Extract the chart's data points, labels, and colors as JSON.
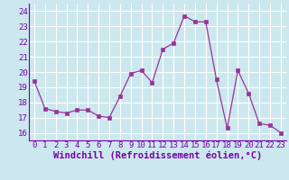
{
  "x": [
    0,
    1,
    2,
    3,
    4,
    5,
    6,
    7,
    8,
    9,
    10,
    11,
    12,
    13,
    14,
    15,
    16,
    17,
    18,
    19,
    20,
    21,
    22,
    23
  ],
  "y": [
    19.4,
    17.6,
    17.4,
    17.3,
    17.5,
    17.5,
    17.1,
    17.0,
    18.4,
    19.9,
    20.1,
    19.3,
    21.5,
    21.9,
    23.7,
    23.3,
    23.3,
    19.5,
    16.3,
    20.1,
    18.6,
    16.6,
    16.5,
    16.0
  ],
  "line_color": "#993399",
  "marker_color": "#993399",
  "bg_color": "#cce8ee",
  "grid_color": "#ffffff",
  "xlabel": "Windchill (Refroidissement éolien,°C)",
  "xlabel_color": "#7700aa",
  "tick_color": "#7700aa",
  "ylim": [
    15.5,
    24.5
  ],
  "yticks": [
    16,
    17,
    18,
    19,
    20,
    21,
    22,
    23,
    24
  ],
  "xticks": [
    0,
    1,
    2,
    3,
    4,
    5,
    6,
    7,
    8,
    9,
    10,
    11,
    12,
    13,
    14,
    15,
    16,
    17,
    18,
    19,
    20,
    21,
    22,
    23
  ],
  "tick_label_size": 6.5,
  "xlabel_size": 7.5
}
